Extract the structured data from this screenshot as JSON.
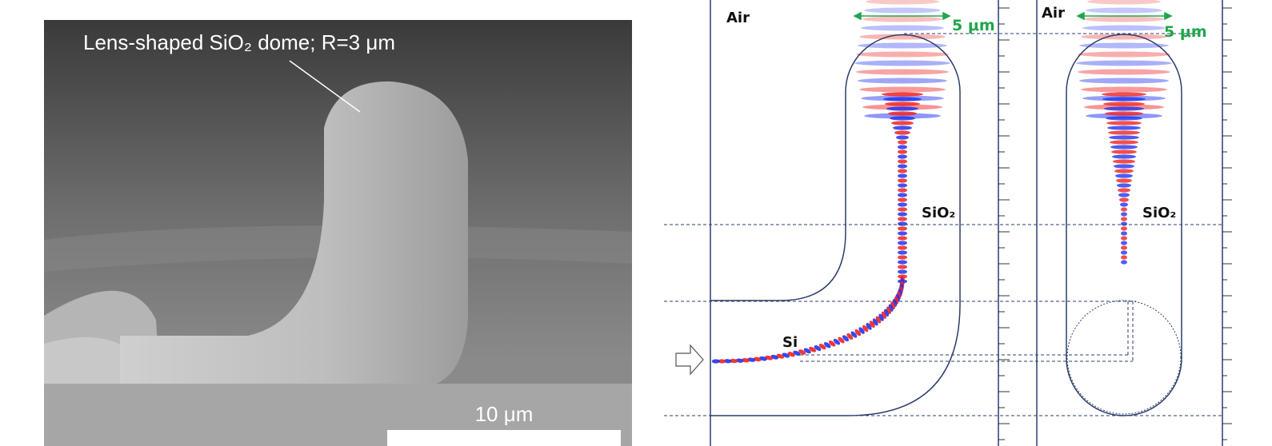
{
  "sem_image": {
    "annotation": "Lens-shaped SiO₂ dome; R=3 μm",
    "scale_bar": "10 μm"
  },
  "simulations": [
    {
      "cladding": "Air",
      "scale": "5 μm",
      "core": "SiO₂",
      "waveguide": "Si"
    },
    {
      "cladding": "Air",
      "scale": "5 μm",
      "core": "SiO₂"
    }
  ]
}
